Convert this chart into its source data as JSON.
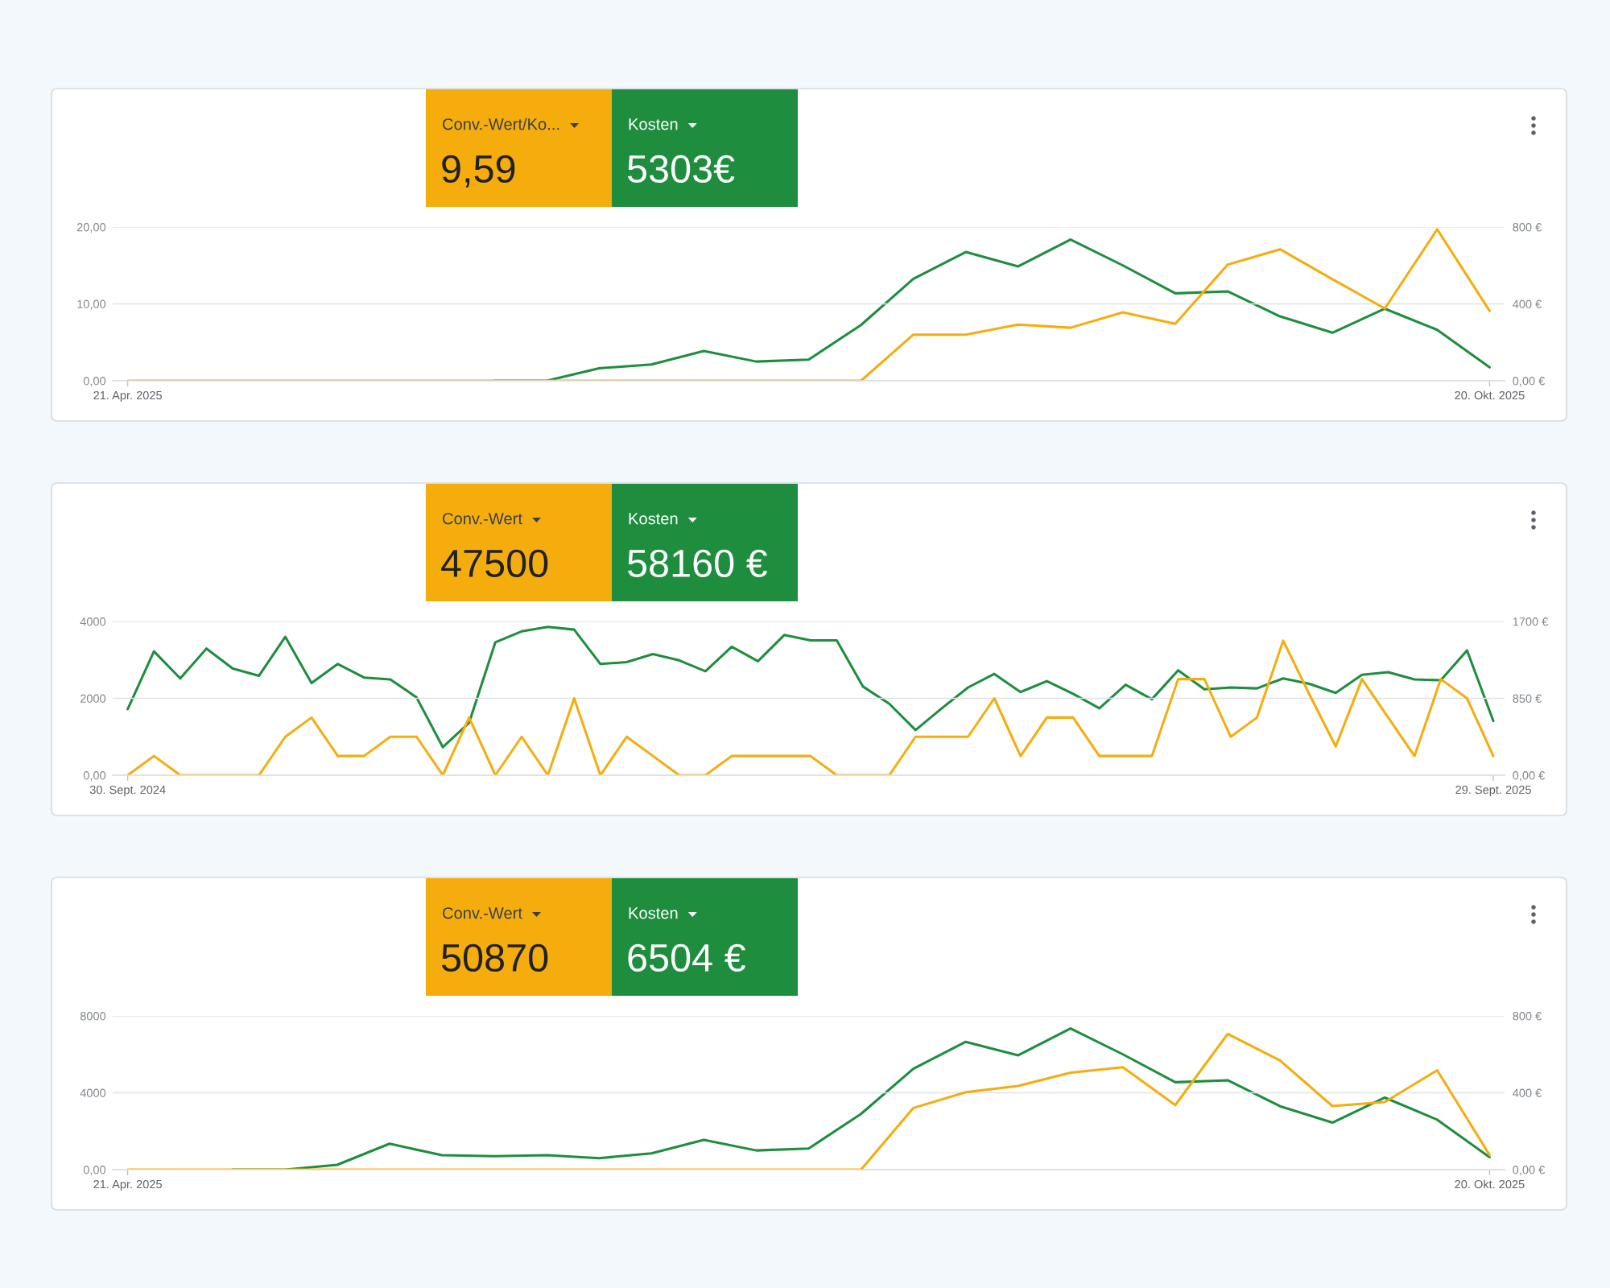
{
  "chart_data": [
    {
      "type": "line",
      "x": [
        "2025-04-21",
        "2025-04-28",
        "2025-05-05",
        "2025-05-12",
        "2025-05-19",
        "2025-05-26",
        "2025-06-02",
        "2025-06-09",
        "2025-06-16",
        "2025-06-23",
        "2025-06-30",
        "2025-07-07",
        "2025-07-14",
        "2025-07-21",
        "2025-07-28",
        "2025-08-04",
        "2025-08-11",
        "2025-08-18",
        "2025-08-25",
        "2025-09-01",
        "2025-09-08",
        "2025-09-15",
        "2025-09-22",
        "2025-09-29",
        "2025-10-06",
        "2025-10-13",
        "2025-10-20"
      ],
      "xlim": [
        "2025-04-19",
        "2025-10-22"
      ],
      "xticks": [
        {
          "value": "2025-04-21",
          "label": "21. Apr. 2025"
        },
        {
          "value": "2025-10-20",
          "label": "20. Okt. 2025"
        }
      ],
      "ylim": [
        0,
        20
      ],
      "yticks": [
        {
          "value": 0,
          "label": "0,00"
        },
        {
          "value": 10,
          "label": "10,00"
        },
        {
          "value": 20,
          "label": "20,00"
        }
      ],
      "y2lim": [
        0,
        800
      ],
      "y2ticks": [
        {
          "value": 0,
          "label": "0,00 €"
        },
        {
          "value": 400,
          "label": "400 €"
        },
        {
          "value": 800,
          "label": "800 €"
        }
      ],
      "grid": "y",
      "legend": "top left",
      "annotations": [
        "9,59",
        "5303€"
      ],
      "series": [
        {
          "name": "Conv.-Wert/Ko...",
          "color": "#f5ad0e",
          "values": [
            0,
            0,
            0,
            0,
            0,
            0,
            0,
            0,
            0,
            0,
            0,
            0,
            0,
            0,
            0,
            6.0,
            6.0,
            7.3,
            6.9,
            8.9,
            7.4,
            15.1,
            17.1,
            13.2,
            9.4,
            19.7,
            9.1
          ]
        },
        {
          "name": "Kosten",
          "color": "#1e8e3e",
          "axis": "y2",
          "values": [
            null,
            null,
            null,
            null,
            null,
            null,
            null,
            0,
            0,
            65,
            85,
            155,
            100,
            110,
            290,
            530,
            670,
            595,
            735,
            600,
            455,
            465,
            335,
            250,
            375,
            265,
            70
          ]
        }
      ]
    },
    {
      "type": "line",
      "x": [
        "2024-09-30",
        "2024-10-07",
        "2024-10-14",
        "2024-10-21",
        "2024-10-28",
        "2024-11-04",
        "2024-11-11",
        "2024-11-18",
        "2024-11-25",
        "2024-12-02",
        "2024-12-09",
        "2024-12-16",
        "2024-12-23",
        "2024-12-30",
        "2025-01-06",
        "2025-01-13",
        "2025-01-20",
        "2025-01-27",
        "2025-02-03",
        "2025-02-10",
        "2025-02-17",
        "2025-02-24",
        "2025-03-03",
        "2025-03-10",
        "2025-03-17",
        "2025-03-24",
        "2025-03-31",
        "2025-04-07",
        "2025-04-14",
        "2025-04-21",
        "2025-04-28",
        "2025-05-05",
        "2025-05-12",
        "2025-05-19",
        "2025-05-26",
        "2025-06-02",
        "2025-06-09",
        "2025-06-16",
        "2025-06-23",
        "2025-06-30",
        "2025-07-07",
        "2025-07-14",
        "2025-07-21",
        "2025-07-28",
        "2025-08-04",
        "2025-08-11",
        "2025-08-18",
        "2025-08-25",
        "2025-09-01",
        "2025-09-08",
        "2025-09-15",
        "2025-09-22",
        "2025-09-29"
      ],
      "xlim": [
        "2024-09-26",
        "2025-10-02"
      ],
      "xticks": [
        {
          "value": "2024-09-30",
          "label": "30. Sept. 2024"
        },
        {
          "value": "2025-09-29",
          "label": "29. Sept. 2025"
        }
      ],
      "ylim": [
        0,
        4000
      ],
      "yticks": [
        {
          "value": 0,
          "label": "0,00"
        },
        2000,
        4000
      ],
      "y2lim": [
        0,
        1700
      ],
      "y2ticks": [
        {
          "value": 0,
          "label": "0,00 €"
        },
        {
          "value": 850,
          "label": "850 €"
        },
        {
          "value": 1700,
          "label": "1700 €"
        }
      ],
      "grid": "y",
      "legend": "top left",
      "annotations": [
        "47500",
        "58160 €"
      ],
      "series": [
        {
          "name": "Conv.-Wert",
          "color": "#f5ad0e",
          "values": [
            0,
            500,
            0,
            0,
            0,
            0,
            1000,
            1500,
            500,
            500,
            1000,
            1000,
            0,
            1500,
            0,
            1000,
            0,
            2000,
            0,
            1000,
            500,
            0,
            0,
            500,
            500,
            500,
            500,
            0,
            0,
            0,
            1000,
            1000,
            1000,
            2000,
            500,
            1500,
            1500,
            500,
            500,
            500,
            2500,
            2500,
            1000,
            1500,
            3500,
            2100,
            750,
            2500,
            1500,
            500,
            2500,
            2000,
            500
          ]
        },
        {
          "name": "Kosten",
          "color": "#1e8e3e",
          "axis": "y2",
          "values": [
            730,
            1370,
            1070,
            1400,
            1180,
            1100,
            1530,
            1020,
            1230,
            1080,
            1060,
            860,
            310,
            580,
            1470,
            1590,
            1640,
            1610,
            1230,
            1250,
            1340,
            1270,
            1150,
            1420,
            1260,
            1550,
            1490,
            1490,
            980,
            790,
            500,
            740,
            970,
            1120,
            920,
            1040,
            900,
            740,
            1000,
            840,
            1160,
            950,
            970,
            960,
            1070,
            1010,
            910,
            1110,
            1140,
            1060,
            1050,
            1380,
            600
          ]
        }
      ]
    },
    {
      "type": "line",
      "x": [
        "2025-04-21",
        "2025-04-28",
        "2025-05-05",
        "2025-05-12",
        "2025-05-19",
        "2025-05-26",
        "2025-06-02",
        "2025-06-09",
        "2025-06-16",
        "2025-06-23",
        "2025-06-30",
        "2025-07-07",
        "2025-07-14",
        "2025-07-21",
        "2025-07-28",
        "2025-08-04",
        "2025-08-11",
        "2025-08-18",
        "2025-08-25",
        "2025-09-01",
        "2025-09-08",
        "2025-09-15",
        "2025-09-22",
        "2025-09-29",
        "2025-10-06",
        "2025-10-13",
        "2025-10-20"
      ],
      "xlim": [
        "2025-04-19",
        "2025-10-22"
      ],
      "xticks": [
        {
          "value": "2025-04-21",
          "label": "21. Apr. 2025"
        },
        {
          "value": "2025-10-20",
          "label": "20. Okt. 2025"
        }
      ],
      "ylim": [
        0,
        8000
      ],
      "yticks": [
        {
          "value": 0,
          "label": "0,00"
        },
        4000,
        8000
      ],
      "y2lim": [
        0,
        800
      ],
      "y2ticks": [
        {
          "value": 0,
          "label": "0,00 €"
        },
        {
          "value": 400,
          "label": "400 €"
        },
        {
          "value": 800,
          "label": "800 €"
        }
      ],
      "grid": "y",
      "legend": "top left",
      "annotations": [
        "50870",
        "6504 €"
      ],
      "series": [
        {
          "name": "Conv.-Wert",
          "color": "#f5ad0e",
          "values": [
            0,
            0,
            0,
            0,
            0,
            0,
            0,
            0,
            0,
            0,
            0,
            0,
            0,
            0,
            0,
            3210,
            4030,
            4360,
            5050,
            5330,
            3360,
            7060,
            5680,
            3310,
            3520,
            5170,
            760
          ]
        },
        {
          "name": "Kosten",
          "color": "#1e8e3e",
          "axis": "y2",
          "values": [
            null,
            null,
            0,
            0,
            25,
            135,
            75,
            70,
            75,
            60,
            85,
            155,
            100,
            110,
            290,
            525,
            665,
            595,
            735,
            600,
            455,
            465,
            330,
            245,
            375,
            260,
            65
          ]
        }
      ]
    }
  ]
}
